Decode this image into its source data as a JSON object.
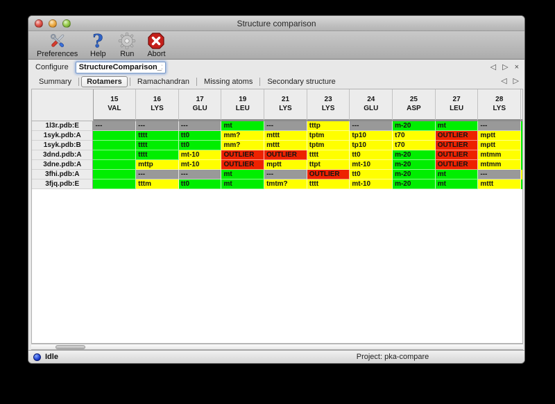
{
  "window": {
    "title": "Structure comparison"
  },
  "toolbar": {
    "buttons": [
      {
        "label": "Preferences",
        "icon": "preferences-tools-icon"
      },
      {
        "label": "Help",
        "icon": "help-question-icon"
      },
      {
        "label": "Run",
        "icon": "run-gear-icon"
      },
      {
        "label": "Abort",
        "icon": "abort-stop-icon"
      }
    ]
  },
  "configure": {
    "label": "Configure",
    "value": "StructureComparison_1",
    "nav": [
      {
        "icon": "nav-left-icon"
      },
      {
        "icon": "nav-right-icon"
      },
      {
        "icon": "close-icon"
      }
    ]
  },
  "tabs": {
    "items": [
      {
        "label": "Summary",
        "selected": false
      },
      {
        "label": "Rotamers",
        "selected": true
      },
      {
        "label": "Ramachandran",
        "selected": false
      },
      {
        "label": "Missing atoms",
        "selected": false
      },
      {
        "label": "Secondary structure",
        "selected": false
      }
    ],
    "nav": [
      {
        "icon": "nav-left-icon"
      },
      {
        "icon": "nav-right-icon"
      }
    ]
  },
  "table": {
    "columns": [
      {
        "number": "15",
        "residue": "VAL"
      },
      {
        "number": "16",
        "residue": "LYS"
      },
      {
        "number": "17",
        "residue": "GLU"
      },
      {
        "number": "19",
        "residue": "LEU"
      },
      {
        "number": "21",
        "residue": "LYS"
      },
      {
        "number": "23",
        "residue": "LYS"
      },
      {
        "number": "24",
        "residue": "GLU"
      },
      {
        "number": "25",
        "residue": "ASP"
      },
      {
        "number": "27",
        "residue": "LEU"
      },
      {
        "number": "28",
        "residue": "LYS"
      }
    ],
    "rows": [
      {
        "name": "1l3r.pdb:E",
        "cells": [
          {
            "text": "---",
            "color": "gray"
          },
          {
            "text": "---",
            "color": "gray"
          },
          {
            "text": "---",
            "color": "gray"
          },
          {
            "text": "mt",
            "color": "green"
          },
          {
            "text": "---",
            "color": "gray"
          },
          {
            "text": "tttp",
            "color": "yellow"
          },
          {
            "text": "---",
            "color": "gray"
          },
          {
            "text": "m-20",
            "color": "green"
          },
          {
            "text": "mt",
            "color": "green"
          },
          {
            "text": "---",
            "color": "gray"
          }
        ]
      },
      {
        "name": "1syk.pdb:A",
        "cells": [
          {
            "text": "",
            "color": "green"
          },
          {
            "text": "tttt",
            "color": "green"
          },
          {
            "text": "tt0",
            "color": "green"
          },
          {
            "text": "mm?",
            "color": "yellow"
          },
          {
            "text": "mttt",
            "color": "yellow"
          },
          {
            "text": "tptm",
            "color": "yellow"
          },
          {
            "text": "tp10",
            "color": "yellow"
          },
          {
            "text": "t70",
            "color": "yellow"
          },
          {
            "text": "OUTLIER",
            "color": "red"
          },
          {
            "text": "mptt",
            "color": "yellow"
          }
        ]
      },
      {
        "name": "1syk.pdb:B",
        "cells": [
          {
            "text": "",
            "color": "green"
          },
          {
            "text": "tttt",
            "color": "green"
          },
          {
            "text": "tt0",
            "color": "green"
          },
          {
            "text": "mm?",
            "color": "yellow"
          },
          {
            "text": "mttt",
            "color": "yellow"
          },
          {
            "text": "tptm",
            "color": "yellow"
          },
          {
            "text": "tp10",
            "color": "yellow"
          },
          {
            "text": "t70",
            "color": "yellow"
          },
          {
            "text": "OUTLIER",
            "color": "red"
          },
          {
            "text": "mptt",
            "color": "yellow"
          }
        ]
      },
      {
        "name": "3dnd.pdb:A",
        "cells": [
          {
            "text": "",
            "color": "green"
          },
          {
            "text": "tttt",
            "color": "green"
          },
          {
            "text": "mt-10",
            "color": "yellow"
          },
          {
            "text": "OUTLIER",
            "color": "red"
          },
          {
            "text": "OUTLIER",
            "color": "red"
          },
          {
            "text": "tttt",
            "color": "yellow"
          },
          {
            "text": "tt0",
            "color": "yellow"
          },
          {
            "text": "m-20",
            "color": "green"
          },
          {
            "text": "OUTLIER",
            "color": "red"
          },
          {
            "text": "mtmm",
            "color": "yellow"
          }
        ]
      },
      {
        "name": "3dne.pdb:A",
        "cells": [
          {
            "text": "",
            "color": "green"
          },
          {
            "text": "mttp",
            "color": "yellow"
          },
          {
            "text": "mt-10",
            "color": "yellow"
          },
          {
            "text": "OUTLIER",
            "color": "red"
          },
          {
            "text": "mptt",
            "color": "yellow"
          },
          {
            "text": "ttpt",
            "color": "yellow"
          },
          {
            "text": "mt-10",
            "color": "yellow"
          },
          {
            "text": "m-20",
            "color": "green"
          },
          {
            "text": "OUTLIER",
            "color": "red"
          },
          {
            "text": "mtmm",
            "color": "yellow"
          }
        ]
      },
      {
        "name": "3fhi.pdb:A",
        "cells": [
          {
            "text": "",
            "color": "green"
          },
          {
            "text": "---",
            "color": "gray"
          },
          {
            "text": "---",
            "color": "gray"
          },
          {
            "text": "mt",
            "color": "green"
          },
          {
            "text": "---",
            "color": "gray"
          },
          {
            "text": "OUTLIER",
            "color": "red"
          },
          {
            "text": "tt0",
            "color": "yellow"
          },
          {
            "text": "m-20",
            "color": "green"
          },
          {
            "text": "mt",
            "color": "green"
          },
          {
            "text": "---",
            "color": "gray"
          }
        ]
      },
      {
        "name": "3fjq.pdb:E",
        "cells": [
          {
            "text": "",
            "color": "green"
          },
          {
            "text": "tttm",
            "color": "yellow"
          },
          {
            "text": "tt0",
            "color": "green"
          },
          {
            "text": "mt",
            "color": "green"
          },
          {
            "text": "tmtm?",
            "color": "yellow"
          },
          {
            "text": "tttt",
            "color": "yellow"
          },
          {
            "text": "mt-10",
            "color": "yellow"
          },
          {
            "text": "m-20",
            "color": "green"
          },
          {
            "text": "mt",
            "color": "green"
          },
          {
            "text": "mttt",
            "color": "yellow"
          }
        ]
      }
    ],
    "overflow_column_colors": [
      "green",
      "green",
      "green",
      "green",
      "green",
      "yellow",
      "green"
    ]
  },
  "colors": {
    "green": "#00ee00",
    "yellow": "#ffff00",
    "red": "#ed2200",
    "gray": "#999999"
  },
  "statusbar": {
    "state": "Idle",
    "project": "Project: pka-compare"
  }
}
